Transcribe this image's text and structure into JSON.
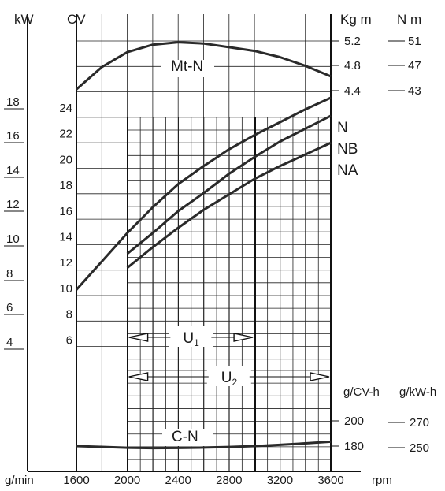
{
  "chart_data": {
    "type": "line",
    "x_unit": "rpm",
    "y_units": [
      "kW",
      "CV",
      "Kg m",
      "N m",
      "g/min",
      "g/CV-h",
      "g/kW-h"
    ],
    "x_ticks": [
      "1600",
      "2000",
      "2400",
      "2800",
      "3200",
      "3600"
    ],
    "x_range": [
      1500,
      3600
    ],
    "kW_ticks": [
      "18",
      "16",
      "14",
      "12",
      "10",
      "8",
      "6",
      "4"
    ],
    "CV_ticks": [
      "24",
      "22",
      "20",
      "18",
      "16",
      "14",
      "12",
      "10",
      "8",
      "6"
    ],
    "power_range_CV": [
      6,
      24
    ],
    "torque_kgm_ticks": [
      "5.2",
      "4.8",
      "4.4"
    ],
    "torque_nm_ticks": [
      "51",
      "47",
      "43"
    ],
    "torque_range_kgm": [
      4.4,
      5.2
    ],
    "consumption_gcvh_ticks": [
      "200",
      "180"
    ],
    "consumption_gkwh_ticks": [
      "270",
      "250"
    ],
    "consumption_range_gcvh": [
      180,
      200
    ],
    "series": [
      {
        "name": "Mt-N",
        "axis": "torque_kgm",
        "x": [
          1600,
          1800,
          2000,
          2200,
          2400,
          2600,
          2800,
          3000,
          3200,
          3400,
          3600
        ],
        "values": [
          4.42,
          4.78,
          5.02,
          5.14,
          5.18,
          5.16,
          5.1,
          5.04,
          4.94,
          4.8,
          4.63
        ]
      },
      {
        "name": "N",
        "axis": "power_CV",
        "x": [
          1600,
          1800,
          2000,
          2200,
          2400,
          2600,
          2800,
          3000,
          3200,
          3400,
          3600
        ],
        "values": [
          10.2,
          12.4,
          14.6,
          16.6,
          18.4,
          19.8,
          21.1,
          22.2,
          23.2,
          24.2,
          25.1
        ]
      },
      {
        "name": "NB",
        "axis": "power_CV",
        "x": [
          2000,
          2200,
          2400,
          2600,
          2800,
          3000,
          3200,
          3400,
          3600
        ],
        "values": [
          13.0,
          14.6,
          16.3,
          17.7,
          19.2,
          20.5,
          21.7,
          22.7,
          23.7
        ]
      },
      {
        "name": "NA",
        "axis": "power_CV",
        "x": [
          2000,
          2200,
          2400,
          2600,
          2800,
          3000,
          3200,
          3400,
          3600
        ],
        "values": [
          11.9,
          13.5,
          15.0,
          16.4,
          17.6,
          18.8,
          19.8,
          20.7,
          21.6
        ]
      },
      {
        "name": "C-N",
        "axis": "consumption_gcvh",
        "x": [
          1600,
          1800,
          2000,
          2200,
          2400,
          2600,
          2800,
          3000,
          3200,
          3400,
          3600
        ],
        "values": [
          180.0,
          179.4,
          178.7,
          178.4,
          178.5,
          178.8,
          179.3,
          180.0,
          181.0,
          182.2,
          183.5
        ]
      }
    ],
    "ranges": [
      {
        "name": "U",
        "sub": "1",
        "from": 2000,
        "to": 3000
      },
      {
        "name": "U",
        "sub": "2",
        "from": 2000,
        "to": 3600
      }
    ]
  }
}
